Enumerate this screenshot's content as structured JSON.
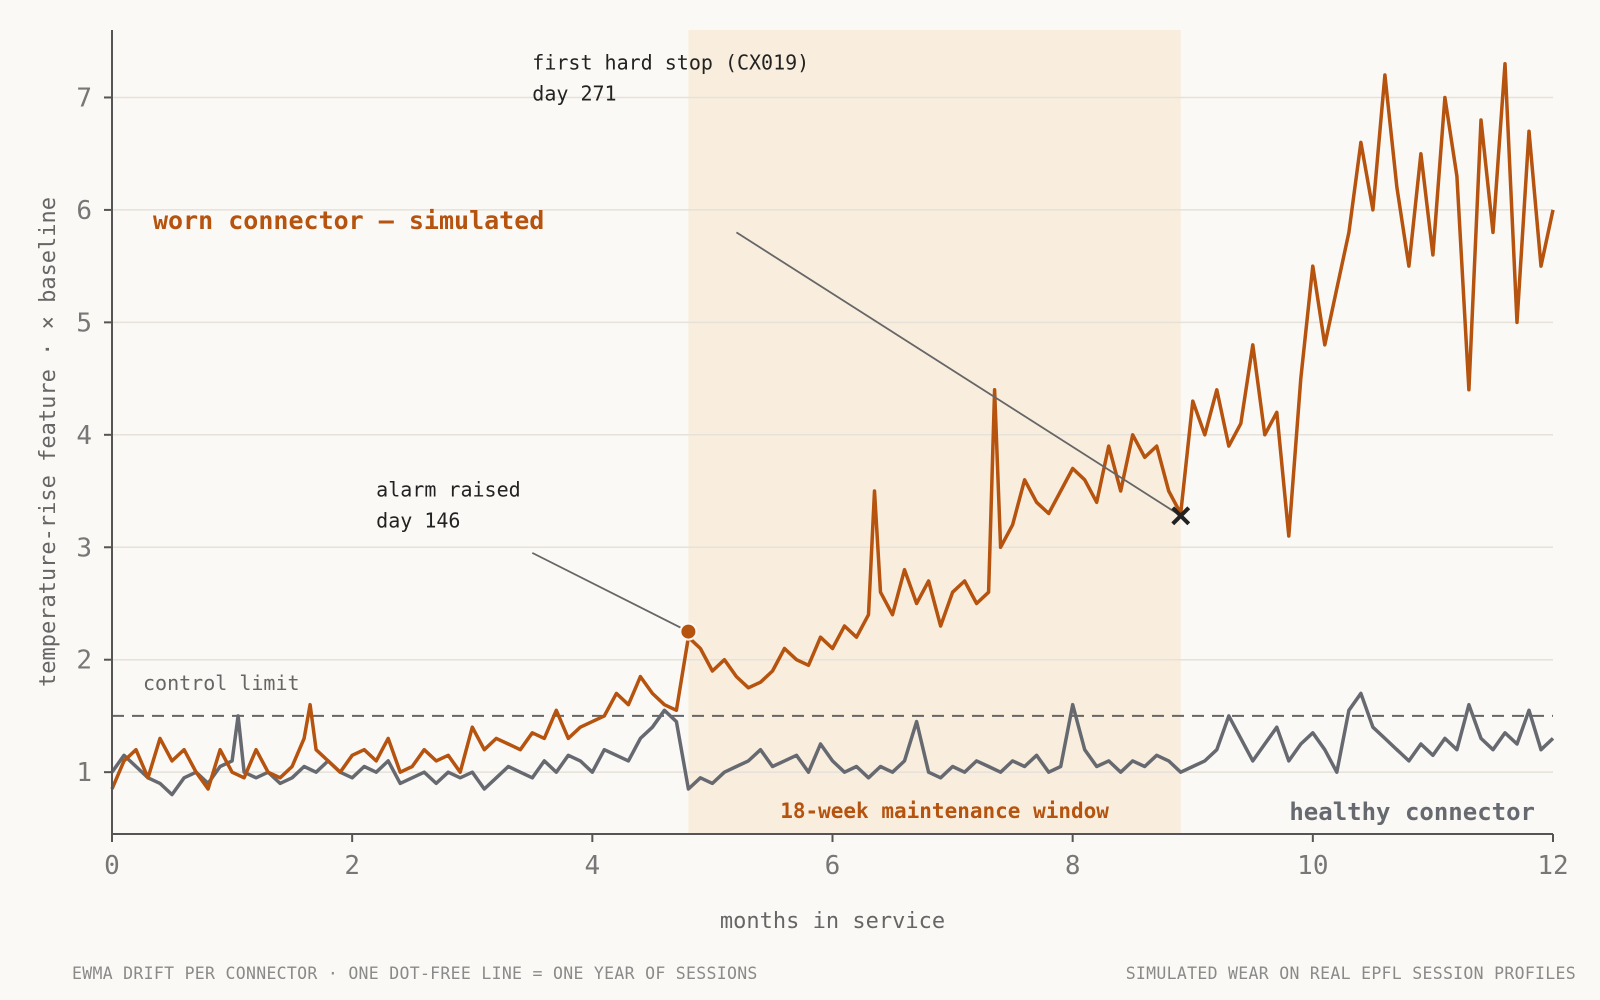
{
  "chart_data": {
    "type": "line",
    "xlabel": "months in service",
    "ylabel": "temperature-rise feature · × baseline",
    "xlim": [
      0,
      12
    ],
    "ylim": [
      0.45,
      7.6
    ],
    "xticks": [
      0,
      2,
      4,
      6,
      8,
      10,
      12
    ],
    "yticks": [
      1,
      2,
      3,
      4,
      5,
      6,
      7
    ],
    "grid": "horizontal",
    "control_limit": {
      "y": 1.5,
      "label": "control limit"
    },
    "maintenance_window": {
      "x_start": 4.8,
      "x_end": 8.9,
      "label": "18-week maintenance window"
    },
    "series": [
      {
        "name": "worn connector — simulated",
        "color": "#b5530f",
        "x": [
          0,
          0.1,
          0.2,
          0.3,
          0.4,
          0.5,
          0.6,
          0.7,
          0.8,
          0.9,
          1.0,
          1.1,
          1.2,
          1.3,
          1.4,
          1.5,
          1.6,
          1.65,
          1.7,
          1.8,
          1.9,
          2.0,
          2.1,
          2.2,
          2.3,
          2.4,
          2.5,
          2.6,
          2.7,
          2.8,
          2.9,
          3.0,
          3.1,
          3.2,
          3.3,
          3.4,
          3.5,
          3.6,
          3.7,
          3.8,
          3.9,
          4.0,
          4.1,
          4.2,
          4.3,
          4.4,
          4.5,
          4.6,
          4.7,
          4.8,
          4.9,
          5.0,
          5.1,
          5.2,
          5.3,
          5.4,
          5.5,
          5.6,
          5.7,
          5.8,
          5.9,
          6.0,
          6.1,
          6.2,
          6.3,
          6.35,
          6.4,
          6.5,
          6.6,
          6.7,
          6.8,
          6.9,
          7.0,
          7.1,
          7.2,
          7.3,
          7.35,
          7.4,
          7.5,
          7.6,
          7.7,
          7.8,
          7.9,
          8.0,
          8.1,
          8.2,
          8.3,
          8.4,
          8.5,
          8.6,
          8.7,
          8.8,
          8.9,
          9.0,
          9.1,
          9.2,
          9.3,
          9.4,
          9.5,
          9.6,
          9.7,
          9.8,
          9.9,
          10.0,
          10.1,
          10.2,
          10.3,
          10.4,
          10.5,
          10.6,
          10.7,
          10.8,
          10.9,
          11.0,
          11.1,
          11.2,
          11.3,
          11.4,
          11.5,
          11.6,
          11.7,
          11.8,
          11.9,
          12.0
        ],
        "values": [
          0.85,
          1.1,
          1.2,
          0.95,
          1.3,
          1.1,
          1.2,
          1.0,
          0.85,
          1.2,
          1.0,
          0.95,
          1.2,
          1.0,
          0.95,
          1.05,
          1.3,
          1.6,
          1.2,
          1.1,
          1.0,
          1.15,
          1.2,
          1.1,
          1.3,
          1.0,
          1.05,
          1.2,
          1.1,
          1.15,
          1.0,
          1.4,
          1.2,
          1.3,
          1.25,
          1.2,
          1.35,
          1.3,
          1.55,
          1.3,
          1.4,
          1.45,
          1.5,
          1.7,
          1.6,
          1.85,
          1.7,
          1.6,
          1.55,
          2.2,
          2.1,
          1.9,
          2.0,
          1.85,
          1.75,
          1.8,
          1.9,
          2.1,
          2.0,
          1.95,
          2.2,
          2.1,
          2.3,
          2.2,
          2.4,
          3.5,
          2.6,
          2.4,
          2.8,
          2.5,
          2.7,
          2.3,
          2.6,
          2.7,
          2.5,
          2.6,
          4.4,
          3.0,
          3.2,
          3.6,
          3.4,
          3.3,
          3.5,
          3.7,
          3.6,
          3.4,
          3.9,
          3.5,
          4.0,
          3.8,
          3.9,
          3.5,
          3.3,
          4.3,
          4.0,
          4.4,
          3.9,
          4.1,
          4.8,
          4.0,
          4.2,
          3.1,
          4.5,
          5.5,
          4.8,
          5.3,
          5.8,
          6.6,
          6.0,
          7.2,
          6.2,
          5.5,
          6.5,
          5.6,
          7.0,
          6.3,
          4.4,
          6.8,
          5.8,
          7.3,
          5.0,
          6.7,
          5.5,
          6.0
        ]
      },
      {
        "name": "healthy connector",
        "color": "#666a70",
        "x": [
          0,
          0.1,
          0.2,
          0.3,
          0.4,
          0.5,
          0.6,
          0.7,
          0.8,
          0.9,
          1.0,
          1.05,
          1.1,
          1.2,
          1.3,
          1.4,
          1.5,
          1.6,
          1.7,
          1.8,
          1.9,
          2.0,
          2.1,
          2.2,
          2.3,
          2.4,
          2.5,
          2.6,
          2.7,
          2.8,
          2.9,
          3.0,
          3.1,
          3.2,
          3.3,
          3.4,
          3.5,
          3.6,
          3.7,
          3.8,
          3.9,
          4.0,
          4.1,
          4.2,
          4.3,
          4.4,
          4.5,
          4.6,
          4.7,
          4.8,
          4.9,
          5.0,
          5.1,
          5.2,
          5.3,
          5.4,
          5.5,
          5.6,
          5.7,
          5.8,
          5.9,
          6.0,
          6.1,
          6.2,
          6.3,
          6.4,
          6.5,
          6.6,
          6.7,
          6.8,
          6.9,
          7.0,
          7.1,
          7.2,
          7.3,
          7.4,
          7.5,
          7.6,
          7.7,
          7.8,
          7.9,
          8.0,
          8.1,
          8.2,
          8.3,
          8.4,
          8.5,
          8.6,
          8.7,
          8.8,
          8.9,
          9.0,
          9.1,
          9.2,
          9.3,
          9.4,
          9.5,
          9.6,
          9.7,
          9.8,
          9.9,
          10.0,
          10.1,
          10.2,
          10.3,
          10.4,
          10.5,
          10.6,
          10.7,
          10.8,
          10.9,
          11.0,
          11.1,
          11.2,
          11.3,
          11.4,
          11.5,
          11.6,
          11.7,
          11.8,
          11.9,
          12.0
        ],
        "values": [
          1.0,
          1.15,
          1.05,
          0.95,
          0.9,
          0.8,
          0.95,
          1.0,
          0.9,
          1.05,
          1.1,
          1.5,
          1.0,
          0.95,
          1.0,
          0.9,
          0.95,
          1.05,
          1.0,
          1.1,
          1.0,
          0.95,
          1.05,
          1.0,
          1.1,
          0.9,
          0.95,
          1.0,
          0.9,
          1.0,
          0.95,
          1.0,
          0.85,
          0.95,
          1.05,
          1.0,
          0.95,
          1.1,
          1.0,
          1.15,
          1.1,
          1.0,
          1.2,
          1.15,
          1.1,
          1.3,
          1.4,
          1.55,
          1.45,
          0.85,
          0.95,
          0.9,
          1.0,
          1.05,
          1.1,
          1.2,
          1.05,
          1.1,
          1.15,
          1.0,
          1.25,
          1.1,
          1.0,
          1.05,
          0.95,
          1.05,
          1.0,
          1.1,
          1.45,
          1.0,
          0.95,
          1.05,
          1.0,
          1.1,
          1.05,
          1.0,
          1.1,
          1.05,
          1.15,
          1.0,
          1.05,
          1.6,
          1.2,
          1.05,
          1.1,
          1.0,
          1.1,
          1.05,
          1.15,
          1.1,
          1.0,
          1.05,
          1.1,
          1.2,
          1.5,
          1.3,
          1.1,
          1.25,
          1.4,
          1.1,
          1.25,
          1.35,
          1.2,
          1.0,
          1.55,
          1.7,
          1.4,
          1.3,
          1.2,
          1.1,
          1.25,
          1.15,
          1.3,
          1.2,
          1.6,
          1.3,
          1.2,
          1.35,
          1.25,
          1.55,
          1.2,
          1.3
        ]
      }
    ],
    "annotations": [
      {
        "name": "alarm",
        "x": 4.8,
        "y": 2.25,
        "marker": "dot",
        "line1": "alarm raised",
        "line2": "day 146",
        "text_x": 2.2,
        "text_y": 3.45,
        "leader_from": [
          3.5,
          2.95
        ]
      },
      {
        "name": "hard-stop",
        "x": 8.9,
        "y": 3.28,
        "marker": "x",
        "line1": "first hard stop (CX019)",
        "line2": "day 271",
        "text_x": 3.5,
        "text_y": 7.25,
        "leader_from": [
          5.2,
          5.8
        ]
      }
    ]
  },
  "footer": {
    "left": "EWMA DRIFT PER CONNECTOR · ONE DOT-FREE LINE = ONE YEAR OF SESSIONS",
    "right": "SIMULATED WEAR ON REAL EPFL SESSION PROFILES"
  }
}
